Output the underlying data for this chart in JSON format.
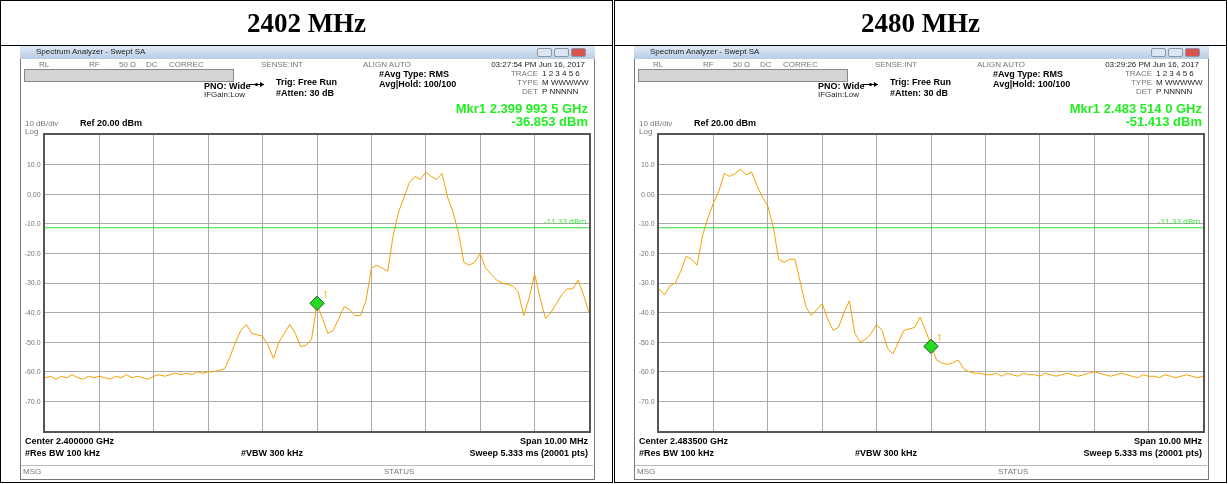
{
  "chart_data": [
    {
      "type": "line",
      "title": "2402 MHz",
      "categories": [
        null,
        null,
        null,
        null,
        null,
        null,
        null,
        null,
        null,
        null,
        null,
        null,
        null,
        null,
        null,
        null,
        null,
        null,
        null,
        null,
        null,
        null,
        null,
        null,
        null,
        null,
        null,
        null,
        null,
        null,
        null,
        null,
        null,
        null,
        null,
        null,
        null,
        null,
        null,
        null,
        null,
        null,
        null,
        null,
        null,
        null,
        null,
        null,
        null,
        null,
        null,
        null,
        null,
        null,
        null,
        null,
        null,
        null,
        null,
        null,
        null,
        null,
        null,
        null,
        null,
        null,
        null,
        null,
        null,
        null,
        null,
        null,
        null,
        null,
        null,
        null,
        null,
        null,
        null,
        null,
        null,
        null,
        null,
        null,
        null,
        null,
        null,
        null,
        null,
        null,
        null,
        null,
        null,
        null,
        null,
        null,
        null,
        null,
        null,
        null,
        null
      ],
      "series": [
        {
          "color": "#f5a100",
          "values": [
            -62,
            -61.5,
            -62.5,
            -61.5,
            -62,
            -61,
            -62,
            -62.5,
            -61.5,
            -62,
            -61.5,
            -62,
            -62.5,
            -61.5,
            -62,
            -61,
            -62,
            -61.5,
            -62,
            -62.5,
            -61.5,
            -61,
            -61.5,
            -61,
            -60.5,
            -61,
            -60.5,
            -61,
            -60,
            -60.5,
            -60,
            -60,
            -59.5,
            -59,
            -55,
            -50,
            -46,
            -44,
            -47,
            -47.5,
            -48,
            -51,
            -55.5,
            -50,
            -47,
            -44,
            -47,
            -51.5,
            -51,
            -49,
            -37,
            -42,
            -47,
            -46,
            -42,
            -38,
            -39,
            -41,
            -41,
            -36,
            -25,
            -24,
            -25,
            -26,
            -14,
            -6,
            -1,
            4,
            6,
            5,
            7.5,
            6,
            5,
            7,
            -1,
            -6,
            -13,
            -23,
            -24,
            -23,
            -20,
            -25,
            -27,
            -29,
            -30,
            -30.5,
            -31,
            -33,
            -41,
            -35,
            -27,
            -35,
            -42,
            -40,
            -37,
            -34,
            -32,
            -32,
            -29,
            -34,
            -40
          ]
        },
        {
          "type": "scatter",
          "marker": "diamond",
          "color": "#22dd22",
          "values": [
            null,
            null,
            null,
            null,
            null,
            null,
            null,
            null,
            null,
            null,
            null,
            null,
            null,
            null,
            null,
            null,
            null,
            null,
            null,
            null,
            null,
            null,
            null,
            null,
            null,
            null,
            null,
            null,
            null,
            null,
            null,
            null,
            null,
            null,
            null,
            null,
            null,
            null,
            null,
            null,
            null,
            null,
            null,
            null,
            null,
            null,
            null,
            null,
            null,
            null,
            -36.853,
            null,
            null,
            null,
            null,
            null,
            null,
            null,
            null,
            null,
            null,
            null,
            null,
            null,
            null,
            null,
            null,
            null,
            null,
            null,
            null,
            null,
            null,
            null,
            null,
            null,
            null,
            null,
            null,
            null,
            null,
            null,
            null,
            null,
            null,
            null,
            null,
            null,
            null,
            null,
            null,
            null,
            null,
            null,
            null,
            null,
            null,
            null,
            null,
            null,
            null
          ]
        }
      ],
      "ylim": [
        -80,
        20
      ],
      "yticks": [
        {
          "value": 10,
          "label": "10.0"
        },
        {
          "value": 0,
          "label": "0.00"
        },
        {
          "value": -10,
          "label": "-10.0"
        },
        {
          "value": -20,
          "label": "-20.0"
        },
        {
          "value": -30,
          "label": "-30.0"
        },
        {
          "value": -40,
          "label": "-40.0"
        },
        {
          "value": -50,
          "label": "-50.0"
        },
        {
          "value": -60,
          "label": "-60.0"
        },
        {
          "value": -70,
          "label": "-70.0"
        }
      ],
      "grid": true,
      "ref_lines": [
        {
          "axis": "y",
          "value": -11.33,
          "label": "-11.33 dBm",
          "color": "#33dd33"
        }
      ],
      "annotations": [
        "Spectrum Analyzer - Swept SA",
        "RL",
        "RF",
        "50 Ω",
        "DC",
        "CORREC",
        "SENSE:INT",
        "ALIGN AUTO",
        "03:27:54 PM Jun 16, 2017",
        "PNO: Wide",
        "IFGain:Low",
        "Trig: Free Run",
        "#Atten: 30 dB",
        "#Avg Type: RMS",
        "Avg|Hold: 100/100",
        "TRACE",
        "1 2 3 4 5 6",
        "TYPE",
        "M WWWWW",
        "DET",
        "P NNNNN",
        "Mkr1 2.399 993 5 GHz",
        "-36.853 dBm",
        "10 dB/div",
        "Ref 20.00 dBm",
        "Log",
        "Center 2.400000 GHz",
        "Span 10.00 MHz",
        "#Res BW 100 kHz",
        "#VBW 300 kHz",
        "Sweep  5.333 ms (20001 pts)",
        "MSG",
        "STATUS",
        "1"
      ]
    },
    {
      "type": "line",
      "title": "2480 MHz",
      "categories": [
        null,
        null,
        null,
        null,
        null,
        null,
        null,
        null,
        null,
        null,
        null,
        null,
        null,
        null,
        null,
        null,
        null,
        null,
        null,
        null,
        null,
        null,
        null,
        null,
        null,
        null,
        null,
        null,
        null,
        null,
        null,
        null,
        null,
        null,
        null,
        null,
        null,
        null,
        null,
        null,
        null,
        null,
        null,
        null,
        null,
        null,
        null,
        null,
        null,
        null,
        null,
        null,
        null,
        null,
        null,
        null,
        null,
        null,
        null,
        null,
        null,
        null,
        null,
        null,
        null,
        null,
        null,
        null,
        null,
        null,
        null,
        null,
        null,
        null,
        null,
        null,
        null,
        null,
        null,
        null,
        null,
        null,
        null,
        null,
        null,
        null,
        null,
        null,
        null,
        null,
        null,
        null,
        null,
        null,
        null,
        null,
        null,
        null,
        null,
        null,
        null
      ],
      "series": [
        {
          "color": "#f5a100",
          "values": [
            -32,
            -34,
            -31,
            -30,
            -26,
            -21,
            -22,
            -24,
            -14,
            -8,
            -3,
            1,
            7,
            6,
            7,
            8.5,
            6.5,
            7.5,
            3,
            -1,
            -4,
            -11,
            -22,
            -23,
            -22,
            -22,
            -30,
            -38,
            -41,
            -39,
            -37,
            -42,
            -46,
            -45,
            -40,
            -36,
            -47,
            -50,
            -49,
            -47,
            -44,
            -46,
            -52,
            -54,
            -50,
            -46,
            -45.5,
            -45,
            -41.5,
            -46,
            -51,
            -56,
            -57,
            -57.5,
            -57,
            -56,
            -59,
            -60,
            -60.5,
            -60.5,
            -61,
            -61,
            -60.5,
            -61.5,
            -60.5,
            -61,
            -61.5,
            -60.5,
            -61,
            -61,
            -61.5,
            -60.5,
            -61,
            -61.5,
            -61,
            -60.5,
            -61,
            -61.5,
            -61,
            -60.5,
            -60,
            -60.5,
            -61,
            -61.5,
            -61,
            -60.5,
            -61,
            -61.5,
            -62,
            -61,
            -61.5,
            -61.5,
            -62,
            -61,
            -61.5,
            -62,
            -61.5,
            -61,
            -61.5,
            -62,
            -61.5
          ]
        },
        {
          "type": "scatter",
          "marker": "diamond",
          "color": "#22dd22",
          "values": [
            null,
            null,
            null,
            null,
            null,
            null,
            null,
            null,
            null,
            null,
            null,
            null,
            null,
            null,
            null,
            null,
            null,
            null,
            null,
            null,
            null,
            null,
            null,
            null,
            null,
            null,
            null,
            null,
            null,
            null,
            null,
            null,
            null,
            null,
            null,
            null,
            null,
            null,
            null,
            null,
            null,
            null,
            null,
            null,
            null,
            null,
            null,
            null,
            null,
            null,
            -51.413,
            null,
            null,
            null,
            null,
            null,
            null,
            null,
            null,
            null,
            null,
            null,
            null,
            null,
            null,
            null,
            null,
            null,
            null,
            null,
            null,
            null,
            null,
            null,
            null,
            null,
            null,
            null,
            null,
            null,
            null,
            null,
            null,
            null,
            null,
            null,
            null,
            null,
            null,
            null,
            null,
            null,
            null,
            null,
            null,
            null,
            null,
            null,
            null,
            null,
            null
          ]
        }
      ],
      "ylim": [
        -80,
        20
      ],
      "yticks": [
        {
          "value": 10,
          "label": "10.0"
        },
        {
          "value": 0,
          "label": "0.00"
        },
        {
          "value": -10,
          "label": "-10.0"
        },
        {
          "value": -20,
          "label": "-20.0"
        },
        {
          "value": -30,
          "label": "-30.0"
        },
        {
          "value": -40,
          "label": "-40.0"
        },
        {
          "value": -50,
          "label": "-50.0"
        },
        {
          "value": -60,
          "label": "-60.0"
        },
        {
          "value": -70,
          "label": "-70.0"
        }
      ],
      "grid": true,
      "ref_lines": [
        {
          "axis": "y",
          "value": -11.33,
          "label": "-11.33 dBm",
          "color": "#33dd33"
        }
      ],
      "annotations": [
        "Spectrum Analyzer - Swept SA",
        "RL",
        "RF",
        "50 Ω",
        "DC",
        "CORREC",
        "SENSE:INT",
        "ALIGN AUTO",
        "03:29:26 PM Jun 16, 2017",
        "PNO: Wide",
        "IFGain:Low",
        "Trig: Free Run",
        "#Atten: 30 dB",
        "#Avg Type: RMS",
        "Avg|Hold: 100/100",
        "TRACE",
        "1 2 3 4 5 6",
        "TYPE",
        "M WWWWW",
        "DET",
        "P NNNNN",
        "Mkr1 2.483 514 0 GHz",
        "-51.413 dBm",
        "10 dB/div",
        "Ref 20.00 dBm",
        "Log",
        "Center 2.483500 GHz",
        "Span 10.00 MHz",
        "#Res BW 100 kHz",
        "#VBW 300 kHz",
        "Sweep  5.333 ms (20001 pts)",
        "MSG",
        "STATUS",
        "1"
      ]
    }
  ]
}
